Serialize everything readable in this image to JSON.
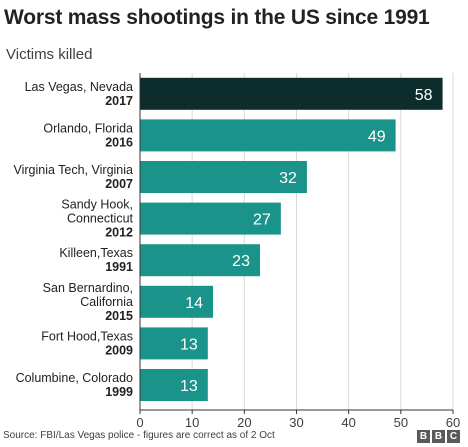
{
  "title": "Worst mass shootings in the US since 1991",
  "subtitle": "Victims killed",
  "footer": {
    "source": "Source: FBI/Las Vegas police - figures are correct as of 2 Oct"
  },
  "logo": {
    "letters": [
      "B",
      "B",
      "C"
    ]
  },
  "colors": {
    "highlight": "#0d2d2d",
    "bar": "#1a948a",
    "grid": "#d9d9d9",
    "axis": "#333333"
  },
  "chart_data": {
    "type": "bar",
    "orientation": "horizontal",
    "title": "Worst mass shootings in the US since 1991",
    "subtitle": "Victims killed",
    "categories": [
      {
        "name": [
          "Las Vegas, Nevada"
        ],
        "year": "2017"
      },
      {
        "name": [
          "Orlando, Florida"
        ],
        "year": "2016"
      },
      {
        "name": [
          "Virginia Tech, Virginia"
        ],
        "year": "2007"
      },
      {
        "name": [
          "Sandy Hook,",
          "Connecticut"
        ],
        "year": "2012"
      },
      {
        "name": [
          "Killeen,Texas"
        ],
        "year": "1991"
      },
      {
        "name": [
          "San Bernardino,",
          "California"
        ],
        "year": "2015"
      },
      {
        "name": [
          "Fort Hood,Texas"
        ],
        "year": "2009"
      },
      {
        "name": [
          "Columbine, Colorado"
        ],
        "year": "1999"
      }
    ],
    "values": [
      58,
      49,
      32,
      27,
      23,
      14,
      13,
      13
    ],
    "highlight_index": 0,
    "xlim": [
      0,
      60
    ],
    "xticks": [
      0,
      10,
      20,
      30,
      40,
      50,
      60
    ],
    "grid": true
  }
}
